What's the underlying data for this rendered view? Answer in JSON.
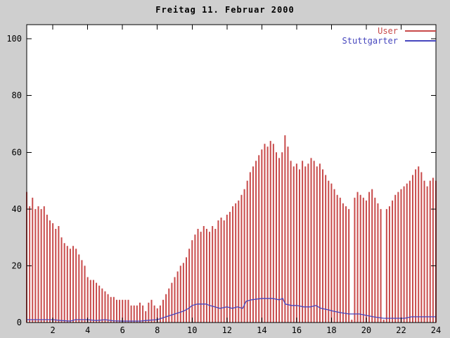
{
  "chart_data": {
    "type": "bar",
    "title": "Freitag 11. Februar 2000",
    "xlabel": "",
    "ylabel": "",
    "xlim": [
      0.5,
      24
    ],
    "ylim": [
      0,
      105
    ],
    "x_ticks": [
      2,
      4,
      6,
      8,
      10,
      12,
      14,
      16,
      18,
      20,
      22,
      24
    ],
    "y_ticks": [
      0,
      20,
      40,
      60,
      80,
      100
    ],
    "grid": false,
    "legend_position": "top-right",
    "frame_color": "#000000",
    "plot_background": "#ffffff",
    "series": [
      {
        "name": "User",
        "style": "impulses",
        "color": "#c84a4a",
        "x_start": 0.5,
        "x_step": 0.166667,
        "values": [
          46,
          41,
          44,
          40,
          41,
          40,
          41,
          38,
          36,
          35,
          33,
          34,
          30,
          28,
          27,
          26,
          27,
          26,
          24,
          22,
          20,
          16,
          15,
          15,
          14,
          13,
          12,
          11,
          10,
          9,
          9,
          8,
          8,
          8,
          8,
          8,
          6,
          6,
          6,
          7,
          6,
          4,
          7,
          8,
          6,
          5,
          6,
          8,
          10,
          12,
          14,
          16,
          18,
          20,
          21,
          23,
          26,
          29,
          31,
          33,
          32,
          34,
          33,
          32,
          34,
          33,
          36,
          37,
          36,
          38,
          39,
          41,
          42,
          43,
          45,
          47,
          50,
          53,
          55,
          57,
          59,
          61,
          63,
          62,
          64,
          63,
          60,
          58,
          60,
          66,
          62,
          57,
          55,
          56,
          54,
          57,
          55,
          56,
          58,
          57,
          55,
          56,
          54,
          52,
          50,
          49,
          47,
          45,
          44,
          42,
          41,
          40,
          1,
          44,
          46,
          45,
          44,
          43,
          46,
          47,
          44,
          42,
          40,
          1,
          40,
          41,
          43,
          45,
          46,
          47,
          48,
          49,
          50,
          52,
          54,
          55,
          53,
          50,
          48,
          50,
          51,
          50
        ]
      },
      {
        "name": "Stuttgarter",
        "style": "line",
        "color": "#4646be",
        "points": [
          [
            0.5,
            1
          ],
          [
            2,
            1
          ],
          [
            2.5,
            0.7
          ],
          [
            3,
            0.5
          ],
          [
            3.3,
            1
          ],
          [
            4,
            1
          ],
          [
            4.5,
            0.7
          ],
          [
            5,
            1
          ],
          [
            5.5,
            0.6
          ],
          [
            6,
            0.5
          ],
          [
            7,
            0.5
          ],
          [
            7.5,
            0.8
          ],
          [
            8,
            1
          ],
          [
            8.5,
            2
          ],
          [
            9,
            3
          ],
          [
            9.5,
            4
          ],
          [
            9.8,
            5
          ],
          [
            10,
            6
          ],
          [
            10.3,
            6.5
          ],
          [
            10.8,
            6.5
          ],
          [
            11,
            6
          ],
          [
            11.3,
            5.5
          ],
          [
            11.6,
            5
          ],
          [
            12,
            5.5
          ],
          [
            12.3,
            5
          ],
          [
            12.6,
            5.5
          ],
          [
            12.9,
            5
          ],
          [
            13.1,
            7.5
          ],
          [
            13.4,
            8
          ],
          [
            14,
            8.5
          ],
          [
            14.6,
            8.5
          ],
          [
            15,
            8
          ],
          [
            15.2,
            8.5
          ],
          [
            15.35,
            6.5
          ],
          [
            15.7,
            6
          ],
          [
            16,
            6
          ],
          [
            16.4,
            5.5
          ],
          [
            16.8,
            5.5
          ],
          [
            17.1,
            6
          ],
          [
            17.4,
            5
          ],
          [
            17.8,
            4.5
          ],
          [
            18.1,
            4
          ],
          [
            18.5,
            3.5
          ],
          [
            19,
            3
          ],
          [
            19.6,
            3
          ],
          [
            20,
            2.5
          ],
          [
            20.4,
            2
          ],
          [
            21,
            1.5
          ],
          [
            21.6,
            1.5
          ],
          [
            22.2,
            1.5
          ],
          [
            22.6,
            2
          ],
          [
            23.4,
            2
          ],
          [
            24,
            2
          ]
        ]
      }
    ]
  }
}
